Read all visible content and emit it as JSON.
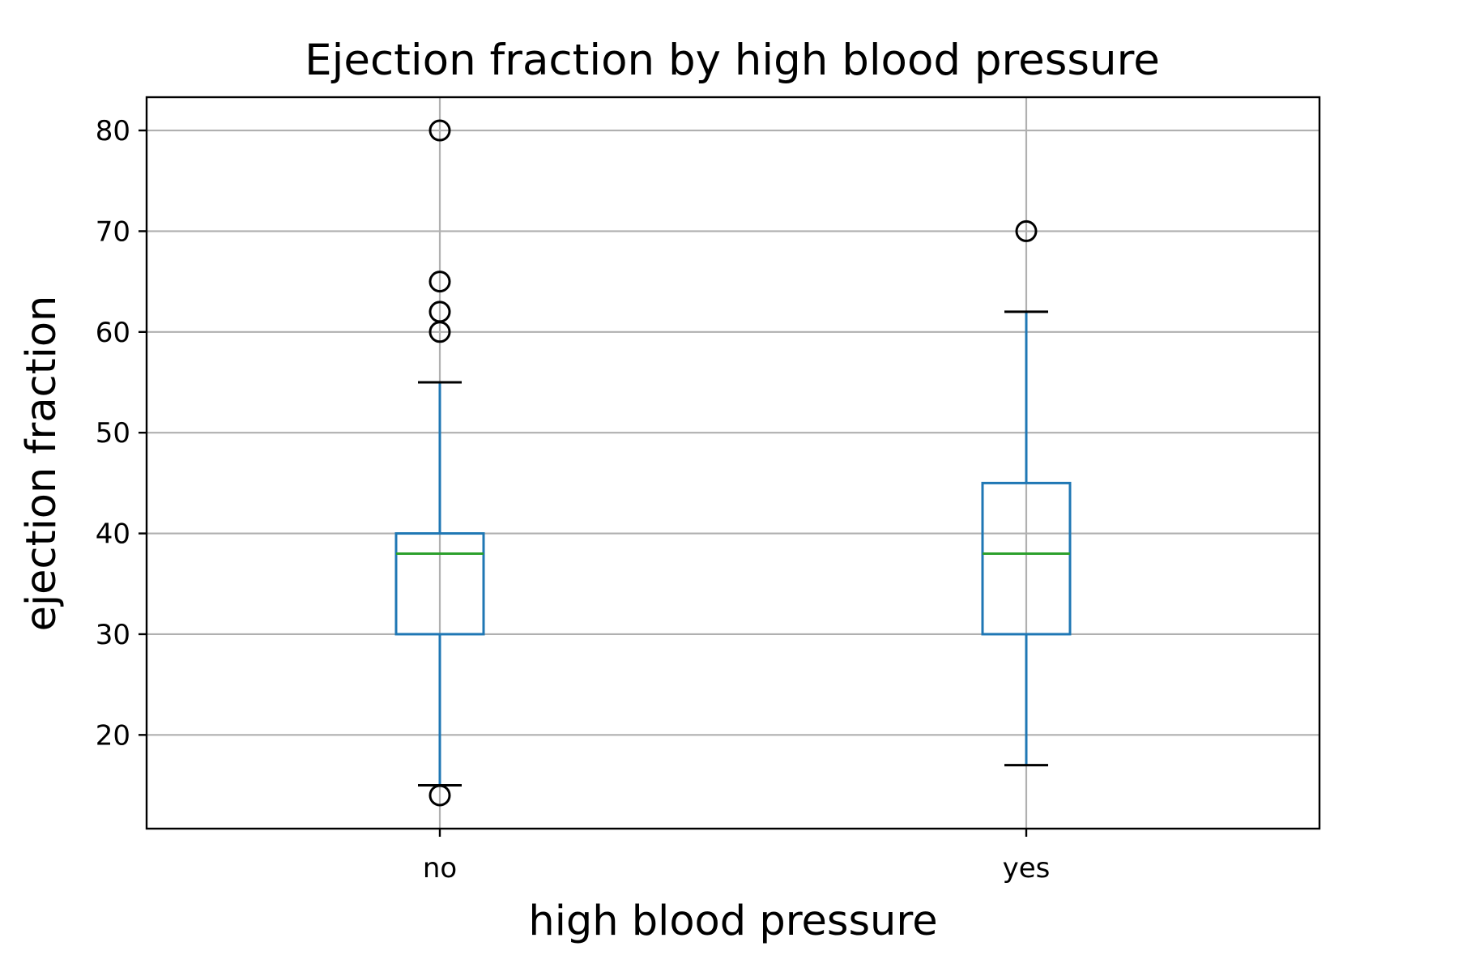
{
  "chart_data": {
    "type": "box",
    "title": "Ejection fraction by high blood pressure",
    "xlabel": "high blood pressure",
    "ylabel": "ejection fraction",
    "categories": [
      "no",
      "yes"
    ],
    "ylim": [
      10.7,
      83.3
    ],
    "yticks": [
      20,
      30,
      40,
      50,
      60,
      70,
      80
    ],
    "grid": true,
    "boxes": [
      {
        "category": "no",
        "whisker_low": 15,
        "q1": 30,
        "median": 38,
        "q3": 40,
        "whisker_high": 55,
        "outliers": [
          80,
          65,
          62,
          60,
          14
        ]
      },
      {
        "category": "yes",
        "whisker_low": 17,
        "q1": 30,
        "median": 38,
        "q3": 45,
        "whisker_high": 62,
        "outliers": [
          70
        ]
      }
    ],
    "colors": {
      "box": "#1f77b4",
      "median": "#2ca02c",
      "cap": "#000000",
      "grid": "#b0b0b0"
    }
  }
}
